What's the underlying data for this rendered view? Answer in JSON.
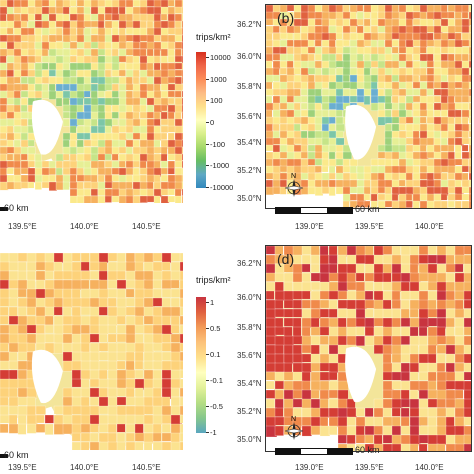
{
  "panels": [
    {
      "letter": "",
      "legend": {
        "title": "trips/km²",
        "ticks": [
          "10000",
          "1000",
          "100",
          "0",
          "-100",
          "-1000",
          "-10000"
        ],
        "colors": [
          "#d7301f",
          "#ef6548",
          "#fc8d59",
          "#fdbb84",
          "#fee08b",
          "#ffffbf",
          "#d9ef8b",
          "#a6d96a",
          "#66bd63",
          "#5fa8c4",
          "#3288bd"
        ]
      },
      "scalebar_label": "60 km",
      "x_ticks": [
        "139.5°E",
        "140.0°E",
        "140.5°E"
      ],
      "y_ticks": [],
      "palette": [
        "#e0613f",
        "#f08a4b",
        "#f6b15e",
        "#fdd27a",
        "#fbe98b",
        "#e6ef95",
        "#c6e488",
        "#9dd17a",
        "#7cc6a8",
        "#6aaed0"
      ],
      "style": "dense"
    },
    {
      "letter": "(b)",
      "legend": null,
      "scalebar_label": "60 km",
      "x_ticks": [
        "139.0°E",
        "139.5°E",
        "140.0°E"
      ],
      "y_ticks": [
        "36.2°N",
        "36.0°N",
        "35.8°N",
        "35.6°N",
        "35.4°N",
        "35.2°N",
        "35.0°N"
      ],
      "palette": [
        "#e0613f",
        "#f08a4b",
        "#f6b15e",
        "#fdd27a",
        "#fbe98b",
        "#e6ef95",
        "#c6e488",
        "#9dd17a",
        "#7cc6a8",
        "#6aaed0"
      ],
      "style": "dense"
    },
    {
      "letter": "",
      "legend": {
        "title": "trips/km²",
        "ticks": [
          "1",
          "0.5",
          "0.1",
          "-0.1",
          "-0.5",
          "-1"
        ],
        "colors": [
          "#c8343f",
          "#e0613f",
          "#f39a57",
          "#fcc27a",
          "#fee08b",
          "#ffffbf",
          "#e3f19a",
          "#b5de84",
          "#86c78c",
          "#5aa6bf"
        ]
      },
      "scalebar_label": "60 km",
      "x_ticks": [
        "139.5°E",
        "140.0°E",
        "140.5°E"
      ],
      "y_ticks": [],
      "palette": [
        "#fbe390",
        "#fbe390",
        "#fdd27a",
        "#f6b15e",
        "#f08a4b",
        "#e6ef95",
        "#fbe390",
        "#fdd27a",
        "#d43d35",
        "#f6c06b"
      ],
      "style": "sparse"
    },
    {
      "letter": "(d)",
      "legend": null,
      "scalebar_label": "60 km",
      "x_ticks": [
        "139.0°E",
        "139.5°E",
        "140.0°E"
      ],
      "y_ticks": [
        "36.2°N",
        "36.0°N",
        "35.8°N",
        "35.6°N",
        "35.4°N",
        "35.2°N",
        "35.0°N"
      ],
      "palette": [
        "#fbe390",
        "#fdd27a",
        "#f6b15e",
        "#f08a4b",
        "#d43d35",
        "#c8343f",
        "#e6ef95",
        "#f6b15e",
        "#d43d35",
        "#fdd27a"
      ],
      "style": "hot"
    }
  ]
}
